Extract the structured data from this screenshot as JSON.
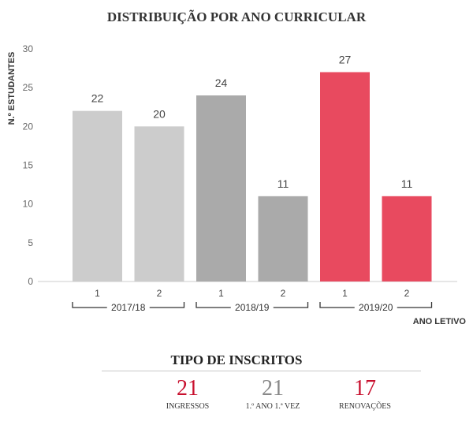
{
  "chart_data": {
    "type": "bar",
    "title": "DISTRIBUIÇÃO POR ANO CURRICULAR",
    "ylabel": "N.º ESTUDANTES",
    "xlabel": "ANO LETIVO",
    "ylim": [
      0,
      30
    ],
    "yticks": [
      0,
      5,
      10,
      15,
      20,
      25,
      30
    ],
    "grid": false,
    "legend": "none",
    "groups": [
      {
        "label": "2017/18",
        "categories": [
          "1",
          "2"
        ],
        "values": [
          22,
          20
        ],
        "colors": [
          "#cccccc",
          "#cccccc"
        ]
      },
      {
        "label": "2018/19",
        "categories": [
          "1",
          "2"
        ],
        "values": [
          24,
          11
        ],
        "colors": [
          "#aaaaaa",
          "#aaaaaa"
        ]
      },
      {
        "label": "2019/20",
        "categories": [
          "1",
          "2"
        ],
        "values": [
          27,
          11
        ],
        "colors": [
          "#e84a5f",
          "#e84a5f"
        ]
      }
    ]
  },
  "stats": {
    "title": "TIPO DE INSCRITOS",
    "items": [
      {
        "value": "21",
        "label": "INGRESSOS",
        "color": "#c8102e"
      },
      {
        "value": "21",
        "label": "1.º ANO 1.ª VEZ",
        "color": "#888888"
      },
      {
        "value": "17",
        "label": "RENOVAÇÕES",
        "color": "#c8102e"
      }
    ]
  }
}
